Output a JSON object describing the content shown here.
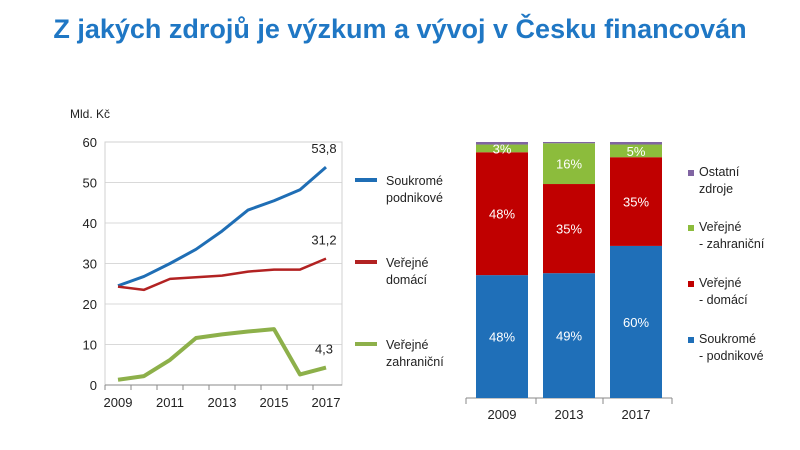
{
  "title": "Z jakých zdrojů je výzkum a vývoj v Česku financován",
  "chart_data": [
    {
      "type": "line",
      "ylabel": "Mld. Kč",
      "ylim": [
        0,
        60
      ],
      "yticks": [
        0,
        10,
        20,
        30,
        40,
        50,
        60
      ],
      "x": [
        2009,
        2010,
        2011,
        2012,
        2013,
        2014,
        2015,
        2016,
        2017
      ],
      "xticks": [
        2009,
        2011,
        2013,
        2015,
        2017
      ],
      "legend": "right",
      "series": [
        {
          "name": "Soukromé podnikové",
          "legend_lines": [
            "Soukromé",
            "podnikové"
          ],
          "color": "#1f6eb5",
          "values": [
            24.5,
            26.8,
            30,
            33.5,
            38,
            43.2,
            45.5,
            48.2,
            53.8
          ],
          "end_label": "53,8"
        },
        {
          "name": "Veřejné domácí",
          "legend_lines": [
            "Veřejné",
            "domácí"
          ],
          "color": "#b22222",
          "values": [
            24.3,
            23.5,
            26.2,
            26.6,
            27,
            28,
            28.5,
            28.5,
            31.2
          ],
          "end_label": "31,2"
        },
        {
          "name": "Veřejné zahraniční",
          "legend_lines": [
            "Veřejné",
            "zahraniční"
          ],
          "color": "#8db04a",
          "values": [
            1.3,
            2.2,
            6.2,
            11.6,
            12.5,
            13.2,
            13.8,
            2.6,
            4.3
          ],
          "end_label": "4,3"
        }
      ]
    },
    {
      "type": "bar",
      "stacked": true,
      "unit": "%",
      "categories": [
        "2009",
        "2013",
        "2017"
      ],
      "legend": "right",
      "series": [
        {
          "name": "Soukromé - podnikové",
          "legend_lines": [
            "Soukromé",
            "- podnikové"
          ],
          "color": "#1f6fb8",
          "values": [
            48,
            49,
            60
          ],
          "labels": [
            "48%",
            "49%",
            "60%"
          ]
        },
        {
          "name": "Veřejné - domácí",
          "legend_lines": [
            "Veřejné",
            "- domácí"
          ],
          "color": "#c00000",
          "values": [
            48,
            35,
            35
          ],
          "labels": [
            "48%",
            "35%",
            "35%"
          ]
        },
        {
          "name": "Veřejné - zahraniční",
          "legend_lines": [
            "Veřejné",
            "- zahraniční"
          ],
          "color": "#8cbc3c",
          "values": [
            3,
            16,
            5
          ],
          "labels": [
            "3%",
            "16%",
            "5%"
          ]
        },
        {
          "name": "Ostatní zdroje",
          "legend_lines": [
            "Ostatní",
            "zdroje"
          ],
          "color": "#8064a2",
          "values": [
            1,
            0.5,
            1
          ],
          "labels": [
            "",
            "",
            ""
          ]
        }
      ]
    }
  ]
}
